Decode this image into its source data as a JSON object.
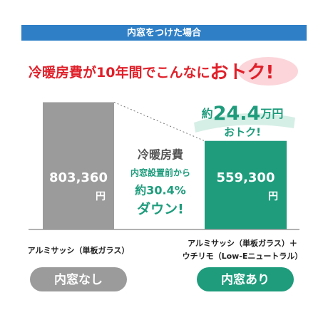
{
  "chart_data": {
    "type": "bar",
    "header": "内窓をつけた場合",
    "title": "冷暖房費が10年間でこんなに",
    "title_emphasis": "おトク!",
    "categories": [
      "アルミサッシ（単板ガラス）",
      "アルミサッシ（単板ガラス）＋\nウチリモ（Low-Eニュートラル）"
    ],
    "groups": [
      "内窓なし",
      "内窓あり"
    ],
    "values": [
      803360,
      559300
    ],
    "value_labels": [
      "803,360",
      "559,300"
    ],
    "value_unit": "円",
    "colors": [
      "#9b9b9b",
      "#1e9c7c"
    ],
    "ylim": [
      0,
      900000
    ],
    "savings": {
      "prefix": "約",
      "amount": "24.4",
      "unit": "万円",
      "tail": "おトク!"
    },
    "comparison": [
      "冷暖房費",
      "内窓設置前から",
      "約30.4%",
      "ダウン!"
    ]
  }
}
